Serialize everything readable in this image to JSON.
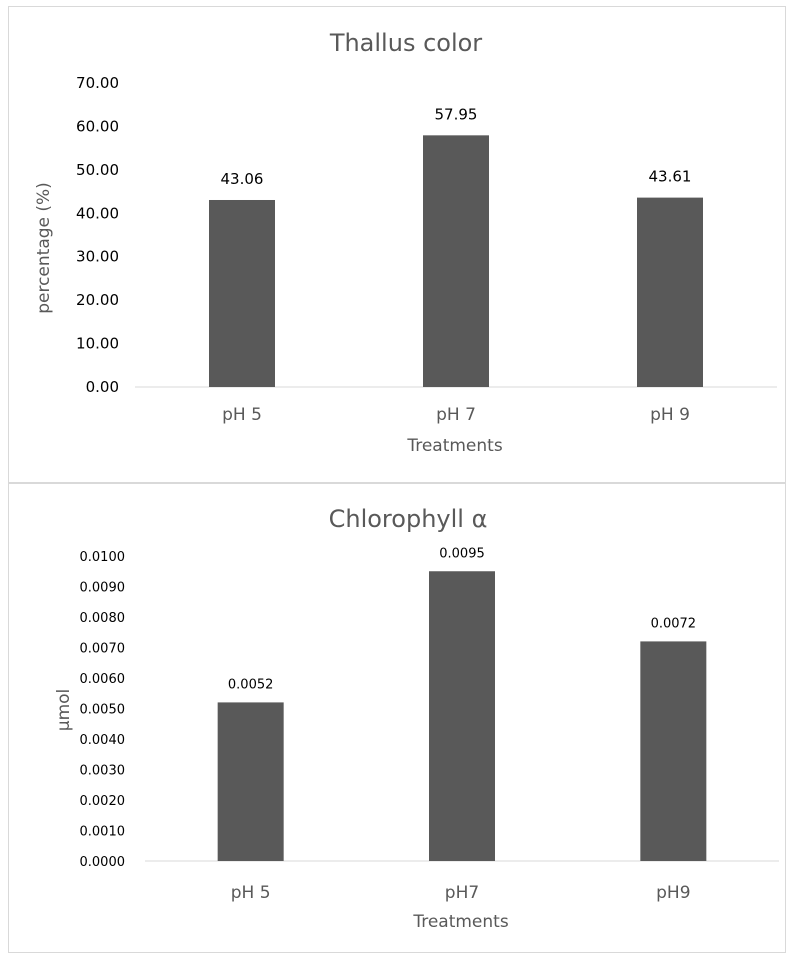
{
  "chart_data": [
    {
      "type": "bar",
      "title": "Thallus color",
      "xlabel": "Treatments",
      "ylabel": "percentage (%)",
      "categories": [
        "pH 5",
        "pH 7",
        "pH 9"
      ],
      "values": [
        43.06,
        57.95,
        43.61
      ],
      "data_labels": [
        "43.06",
        "57.95",
        "43.61"
      ],
      "ylim": [
        0,
        70
      ],
      "yticks": [
        "0.00",
        "10.00",
        "20.00",
        "30.00",
        "40.00",
        "50.00",
        "60.00",
        "70.00"
      ],
      "bar_color": "#595959",
      "grid": false,
      "legend": "none"
    },
    {
      "type": "bar",
      "title": "Chlorophyll α",
      "xlabel": "Treatments",
      "ylabel": "µmol",
      "categories": [
        "pH 5",
        "pH7",
        "pH9"
      ],
      "values": [
        0.0052,
        0.0095,
        0.0072
      ],
      "data_labels": [
        "0.0052",
        "0.0095",
        "0.0072"
      ],
      "ylim": [
        0,
        0.01
      ],
      "yticks": [
        "0.0000",
        "0.0010",
        "0.0020",
        "0.0030",
        "0.0040",
        "0.0050",
        "0.0060",
        "0.0070",
        "0.0080",
        "0.0090",
        "0.0100"
      ],
      "bar_color": "#595959",
      "grid": false,
      "legend": "none"
    }
  ]
}
